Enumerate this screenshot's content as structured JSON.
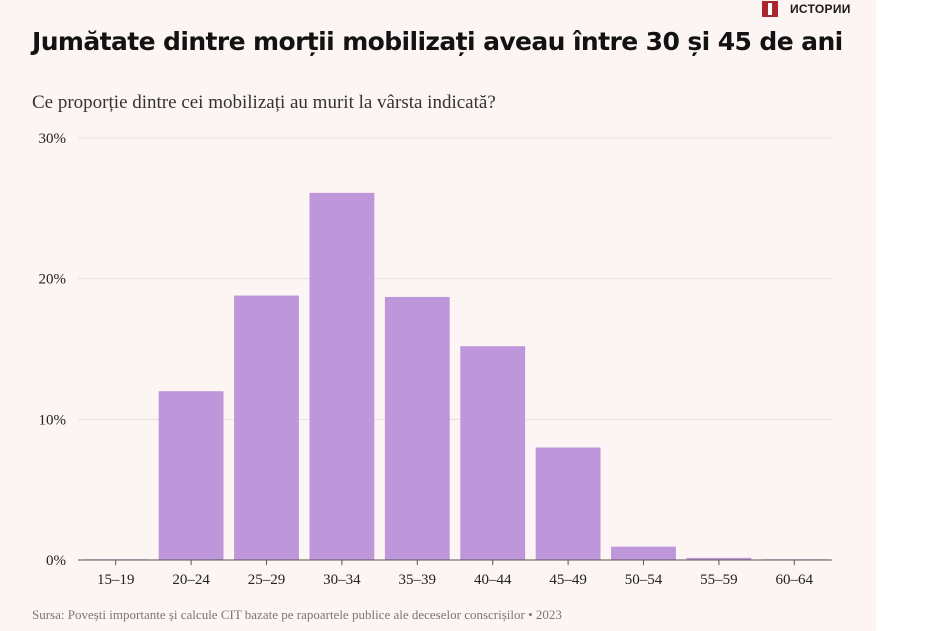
{
  "brand": {
    "logo_text": "ИСТОРИИ",
    "logo_color": "#a8262c"
  },
  "title": "Jumătate dintre morții mobilizați aveau între 30 și 45 de ani",
  "subtitle": "Ce proporție dintre cei mobilizați au murit la vârsta indicată?",
  "source": "Sursa: Povești importante și calcule CIT bazate pe rapoartele publice ale deceselor conscrișilor • 2023",
  "chart_data": {
    "type": "bar",
    "categories": [
      "15–19",
      "20–24",
      "25–29",
      "30–34",
      "35–39",
      "40–44",
      "45–49",
      "50–54",
      "55–59",
      "60–64"
    ],
    "values": [
      0.05,
      12.0,
      18.8,
      26.1,
      18.7,
      15.2,
      8.0,
      0.95,
      0.15,
      0.05
    ],
    "ylim": [
      0,
      30
    ],
    "yticks": [
      0,
      10,
      20,
      30
    ],
    "ytick_labels": [
      "0%",
      "10%",
      "20%",
      "30%"
    ],
    "bar_color": "#bd97d9",
    "grid": true,
    "legend": "none"
  }
}
